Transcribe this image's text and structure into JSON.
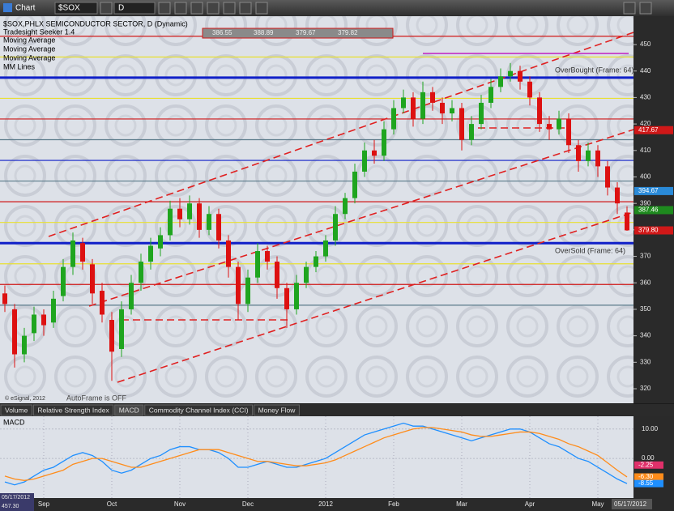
{
  "toolbar": {
    "title": "Chart",
    "symbol": "$SOX",
    "interval": "D"
  },
  "chart_data": [
    {
      "type": "candlestick",
      "title": "$SOX,PHLX SEMICONDUCTOR SECTOR, D (Dynamic)",
      "indicators": [
        "Tradesight Seeker 1.4",
        "Moving Average",
        "Moving Average",
        "Moving Average",
        "MM Lines"
      ],
      "categories": [
        null,
        null,
        null,
        null,
        "Sep",
        null,
        null,
        null,
        null,
        null,
        null,
        "Oct",
        null,
        null,
        null,
        null,
        null,
        null,
        "Nov",
        null,
        null,
        null,
        null,
        null,
        null,
        "Dec",
        null,
        null,
        null,
        null,
        null,
        null,
        null,
        "2012",
        null,
        null,
        null,
        null,
        null,
        null,
        "Feb",
        null,
        null,
        null,
        null,
        null,
        null,
        "Mar",
        null,
        null,
        null,
        null,
        null,
        null,
        "Apr",
        null,
        null,
        null,
        null,
        null,
        null,
        "May",
        null,
        null,
        null
      ],
      "ohlc": [
        [
          356,
          359,
          349,
          352
        ],
        [
          350,
          352,
          328,
          333
        ],
        [
          333,
          343,
          330,
          340
        ],
        [
          341,
          351,
          338,
          348
        ],
        [
          348,
          350,
          340,
          344
        ],
        [
          345,
          357,
          343,
          354
        ],
        [
          355,
          369,
          353,
          366
        ],
        [
          366,
          379,
          363,
          376
        ],
        [
          375,
          377,
          365,
          368
        ],
        [
          367,
          369,
          352,
          356
        ],
        [
          357,
          360,
          345,
          348
        ],
        [
          346,
          349,
          323,
          334
        ],
        [
          335,
          353,
          332,
          350
        ],
        [
          350,
          363,
          348,
          360
        ],
        [
          360,
          371,
          357,
          368
        ],
        [
          368,
          377,
          365,
          374
        ],
        [
          373,
          381,
          370,
          378
        ],
        [
          378,
          391,
          376,
          388
        ],
        [
          388,
          392,
          381,
          384
        ],
        [
          384,
          393,
          382,
          390
        ],
        [
          390,
          392,
          377,
          380
        ],
        [
          380,
          389,
          378,
          386
        ],
        [
          386,
          388,
          373,
          376
        ],
        [
          376,
          378,
          362,
          366
        ],
        [
          366,
          368,
          346,
          352
        ],
        [
          352,
          365,
          349,
          362
        ],
        [
          362,
          375,
          360,
          372
        ],
        [
          372,
          374,
          365,
          368
        ],
        [
          368,
          370,
          354,
          358
        ],
        [
          358,
          360,
          343,
          350
        ],
        [
          350,
          363,
          348,
          360
        ],
        [
          360,
          368,
          358,
          366
        ],
        [
          366,
          372,
          364,
          370
        ],
        [
          370,
          378,
          368,
          376
        ],
        [
          376,
          389,
          374,
          386
        ],
        [
          386,
          394,
          384,
          392
        ],
        [
          392,
          405,
          390,
          402
        ],
        [
          402,
          413,
          400,
          410
        ],
        [
          410,
          414,
          405,
          408
        ],
        [
          408,
          421,
          406,
          418
        ],
        [
          418,
          429,
          416,
          426
        ],
        [
          426,
          433,
          424,
          430
        ],
        [
          430,
          432,
          419,
          422
        ],
        [
          422,
          436,
          420,
          432
        ],
        [
          432,
          434,
          425,
          428
        ],
        [
          428,
          430,
          420,
          424
        ],
        [
          424,
          429,
          421,
          426
        ],
        [
          426,
          428,
          410,
          414
        ],
        [
          414,
          423,
          412,
          420
        ],
        [
          420,
          431,
          418,
          428
        ],
        [
          428,
          437,
          426,
          434
        ],
        [
          434,
          441,
          432,
          438
        ],
        [
          438,
          443,
          436,
          440
        ],
        [
          440,
          442,
          433,
          436
        ],
        [
          436,
          438,
          427,
          430
        ],
        [
          430,
          432,
          417,
          420
        ],
        [
          420,
          423,
          414,
          418
        ],
        [
          418,
          425,
          416,
          422
        ],
        [
          422,
          424,
          409,
          412
        ],
        [
          412,
          414,
          402,
          406
        ],
        [
          406,
          413,
          404,
          410
        ],
        [
          410,
          412,
          400,
          404
        ],
        [
          404,
          406,
          393,
          396
        ],
        [
          396,
          398,
          386,
          390
        ],
        [
          386.55,
          388.89,
          379.67,
          379.82
        ]
      ],
      "up_color": "#1fa51f",
      "down_color": "#dd1111",
      "ylim": [
        314.5,
        460.1
      ],
      "yticks": [
        320,
        330,
        340,
        350,
        360,
        370,
        380,
        390,
        400,
        410,
        420,
        430,
        440,
        450
      ],
      "levels": [
        {
          "value": 351.56,
          "color": "#5a7a8a",
          "style": "thin"
        },
        {
          "value": 359.38,
          "color": "#d01818",
          "style": "thin"
        },
        {
          "value": 367.19,
          "color": "#e8e030",
          "style": "thin"
        },
        {
          "value": 375,
          "color": "#1020c8",
          "style": "thick"
        },
        {
          "value": 382.81,
          "color": "#e8e030",
          "style": "thin"
        },
        {
          "value": 390.63,
          "color": "#d01818",
          "style": "thin"
        },
        {
          "value": 398.44,
          "color": "#5a7a8a",
          "style": "thin"
        },
        {
          "value": 406.25,
          "color": "#1020c8",
          "style": "thin"
        },
        {
          "value": 414.06,
          "color": "#5a7a8a",
          "style": "thin"
        },
        {
          "value": 421.88,
          "color": "#d01818",
          "style": "thin"
        },
        {
          "value": 429.69,
          "color": "#e8e030",
          "style": "thin"
        },
        {
          "value": 437.5,
          "color": "#1020c8",
          "style": "thick"
        },
        {
          "value": 445.31,
          "color": "#e8e030",
          "style": "thin"
        },
        {
          "value": 453.13,
          "color": "#d01818",
          "style": "thin"
        }
      ],
      "price_tags": [
        {
          "value": 417.67,
          "color": "#d01818"
        },
        {
          "value": 394.67,
          "color": "#2a8ad8"
        },
        {
          "value": 387.46,
          "color": "#1e8a1e"
        },
        {
          "value": 379.8,
          "label": "379.80",
          "color": "#d01818"
        }
      ],
      "annotations": {
        "overbought": "OverBought (Frame: 64)",
        "oversold": "OverSold (Frame: 64)",
        "autoframe": "AutoFrame is OFF",
        "copyright": "© eSignal, 2012"
      }
    },
    {
      "type": "line",
      "title": "MACD",
      "series": [
        {
          "color": "#1e8fff",
          "values": [
            -8,
            -9,
            -8,
            -6,
            -4,
            -3,
            -1,
            1,
            2,
            1,
            -1,
            -4,
            -5,
            -4,
            -2,
            0,
            1,
            3,
            4,
            4,
            3,
            3,
            2,
            0,
            -3,
            -3,
            -2,
            -1,
            -2,
            -3,
            -3,
            -2,
            -1,
            0,
            2,
            4,
            6,
            8,
            9,
            10,
            11,
            12,
            11,
            11,
            10,
            9,
            8,
            7,
            6,
            7,
            8,
            9,
            10,
            10,
            9,
            7,
            5,
            4,
            2,
            0,
            -1,
            -3,
            -5,
            -7,
            -8.55
          ]
        },
        {
          "color": "#ff8c1a",
          "values": [
            -6,
            -7,
            -7.5,
            -7,
            -6,
            -5,
            -4,
            -2,
            -1,
            0,
            0,
            -1,
            -2,
            -3,
            -3,
            -2,
            -1,
            0,
            1,
            2,
            3,
            3,
            3,
            2,
            1,
            0,
            -1,
            -1,
            -1.5,
            -2,
            -2.5,
            -2.5,
            -2,
            -1.5,
            -0.5,
            1,
            2.5,
            4,
            5.5,
            7,
            8,
            9,
            10,
            10.5,
            10.5,
            10,
            9.5,
            9,
            8,
            7.5,
            7.5,
            8,
            8.5,
            9,
            9,
            8.5,
            7.5,
            6.5,
            5,
            4,
            2.5,
            1,
            -1.5,
            -4,
            -6.3
          ]
        }
      ],
      "ylim": [
        -13.2,
        13.8
      ],
      "yticks": [
        {
          "value": 10,
          "label": "10.00"
        },
        {
          "value": 0,
          "label": "0.00"
        }
      ],
      "tags": [
        {
          "value": -2.25,
          "color": "#e0306a"
        },
        {
          "value": -6.3,
          "label": "-6.30",
          "color": "#ff8c1a"
        },
        {
          "value": -8.55,
          "color": "#1e8fff"
        }
      ]
    }
  ],
  "tabs": [
    "Volume",
    "Relative Strength Index",
    "MACD",
    "Commodity Channel Index (CCI)",
    "Money Flow"
  ],
  "status": {
    "date": "05/17/2012",
    "cursor_date": "05/17/2012",
    "cursor_value": "457.30"
  }
}
